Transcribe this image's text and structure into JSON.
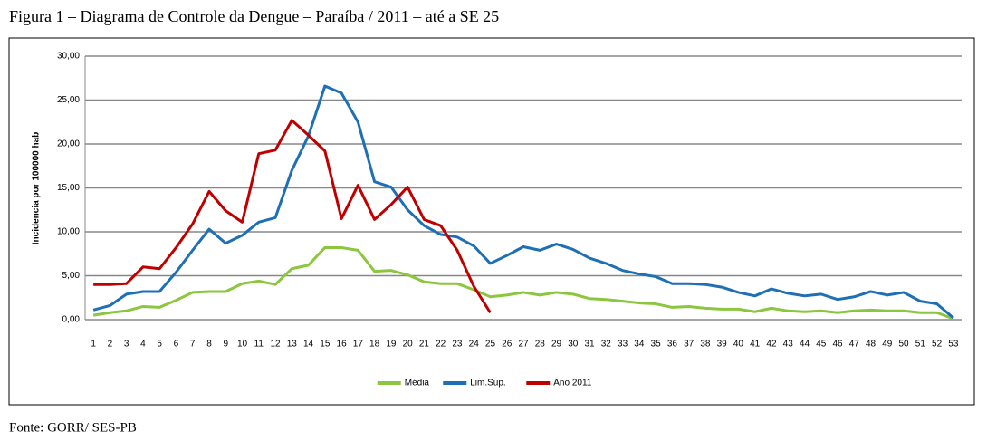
{
  "chart_data": {
    "type": "line",
    "title": "Figura 1 – Diagrama de Controle da Dengue – Paraíba / 2011 – até a SE 25",
    "ylabel": "Incidencia por 100000 hab",
    "source": "Fonte: GORR/ SES-PB",
    "categories": [
      "1",
      "2",
      "3",
      "4",
      "5",
      "6",
      "7",
      "8",
      "9",
      "10",
      "11",
      "12",
      "13",
      "14",
      "15",
      "16",
      "17",
      "18",
      "19",
      "20",
      "21",
      "22",
      "23",
      "24",
      "25",
      "26",
      "27",
      "28",
      "29",
      "30",
      "31",
      "32",
      "33",
      "34",
      "35",
      "36",
      "37",
      "38",
      "39",
      "40",
      "41",
      "42",
      "43",
      "44",
      "45",
      "46",
      "47",
      "48",
      "49",
      "50",
      "51",
      "52",
      "53"
    ],
    "ylim": [
      0,
      30
    ],
    "yticks": [
      {
        "value": 0,
        "label": "0,00"
      },
      {
        "value": 5,
        "label": "5,00"
      },
      {
        "value": 10,
        "label": "10,00"
      },
      {
        "value": 15,
        "label": "15,00"
      },
      {
        "value": 20,
        "label": "20,00"
      },
      {
        "value": 25,
        "label": "25,00"
      },
      {
        "value": 30,
        "label": "30,00"
      }
    ],
    "grid": true,
    "legend": "bottom",
    "series": [
      {
        "name": "Média",
        "color": "#8cc63f",
        "values": [
          0.5,
          0.8,
          1.0,
          1.5,
          1.4,
          2.2,
          3.1,
          3.2,
          3.2,
          4.1,
          4.4,
          4.0,
          5.8,
          6.2,
          8.2,
          8.2,
          7.9,
          5.5,
          5.6,
          5.1,
          4.3,
          4.1,
          4.1,
          3.4,
          2.6,
          2.8,
          3.1,
          2.8,
          3.1,
          2.9,
          2.4,
          2.3,
          2.1,
          1.9,
          1.8,
          1.4,
          1.5,
          1.3,
          1.2,
          1.2,
          0.9,
          1.3,
          1.0,
          0.9,
          1.0,
          0.8,
          1.0,
          1.1,
          1.0,
          1.0,
          0.8,
          0.8,
          0.1
        ]
      },
      {
        "name": "Lim.Sup.",
        "color": "#1f6fb5",
        "values": [
          1.1,
          1.6,
          2.9,
          3.2,
          3.2,
          5.4,
          7.9,
          10.3,
          8.7,
          9.6,
          11.1,
          11.6,
          17.0,
          20.9,
          26.6,
          25.8,
          22.5,
          15.7,
          15.1,
          12.5,
          10.7,
          9.7,
          9.4,
          8.4,
          6.4,
          7.3,
          8.3,
          7.9,
          8.6,
          8.0,
          7.0,
          6.4,
          5.6,
          5.2,
          4.9,
          4.1,
          4.1,
          4.0,
          3.7,
          3.1,
          2.7,
          3.5,
          3.0,
          2.7,
          2.9,
          2.3,
          2.6,
          3.2,
          2.8,
          3.1,
          2.1,
          1.8,
          0.2
        ]
      },
      {
        "name": "Ano 2011",
        "color": "#c00000",
        "values": [
          4.0,
          4.0,
          4.1,
          6.0,
          5.8,
          8.2,
          10.9,
          14.6,
          12.4,
          11.1,
          18.9,
          19.3,
          22.7,
          21.0,
          19.2,
          11.5,
          15.3,
          11.4,
          13.1,
          15.1,
          11.4,
          10.7,
          7.9,
          3.8,
          0.8,
          null,
          null,
          null,
          null,
          null,
          null,
          null,
          null,
          null,
          null,
          null,
          null,
          null,
          null,
          null,
          null,
          null,
          null,
          null,
          null,
          null,
          null,
          null,
          null,
          null,
          null,
          null,
          null
        ]
      }
    ]
  }
}
